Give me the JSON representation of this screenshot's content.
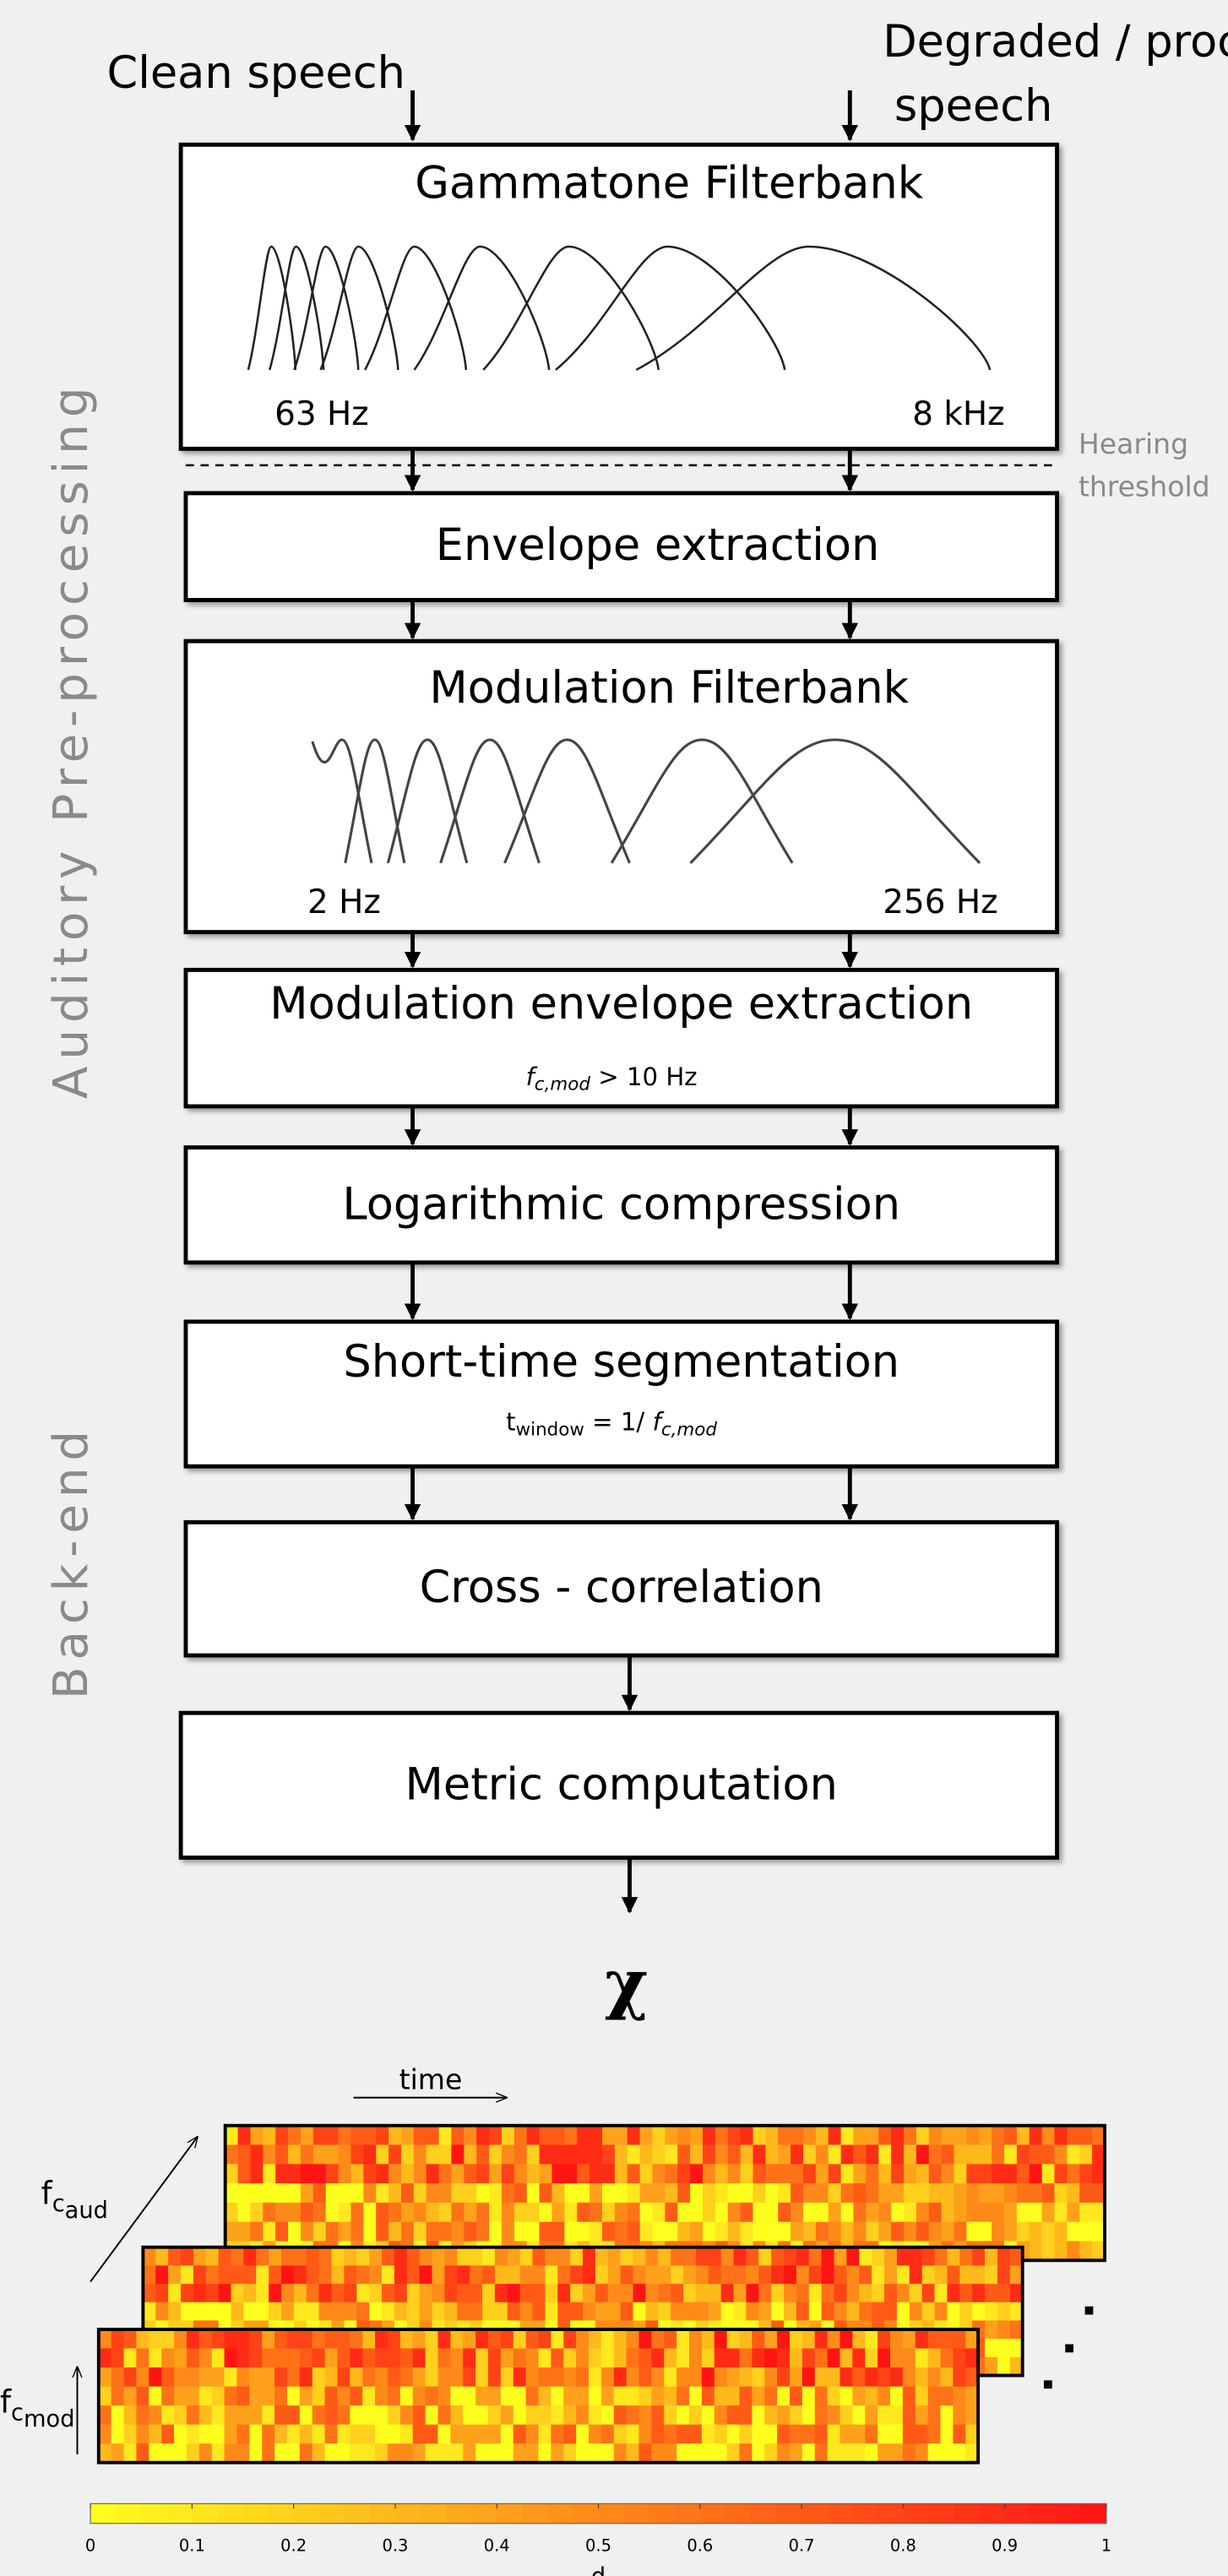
{
  "inputs": {
    "clean": "Clean speech",
    "degraded": [
      "Degraded / proc",
      "speech"
    ]
  },
  "side_labels": {
    "auditory": "Auditory  Pre-processing",
    "backend": "Back-end"
  },
  "threshold": [
    "Hearing",
    "threshold"
  ],
  "blocks": [
    {
      "title": "Gammatone Filterbank",
      "low": "63 Hz",
      "high": "8 kHz"
    },
    {
      "title": "Envelope extraction"
    },
    {
      "title": "Modulation Filterbank",
      "low": "2 Hz",
      "high": "256 Hz"
    },
    {
      "title": "Modulation envelope extraction",
      "note": {
        "f": "f",
        "sub": "c,mod",
        "rest": " > 10 Hz"
      }
    },
    {
      "title": "Logarithmic compression"
    },
    {
      "title": "Short-time segmentation",
      "note": {
        "t": "t",
        "tsub": "window",
        "eq": " = 1/ ",
        "f": "f",
        "sub": "c,mod"
      }
    },
    {
      "title": "Cross - correlation"
    },
    {
      "title": "Metric computation"
    }
  ],
  "output": "χ",
  "illustration": {
    "time": "time",
    "faud": {
      "f": "f",
      "sub": "c",
      "subsub": "aud"
    },
    "fmod": {
      "f": "f",
      "sub": "c",
      "subsub": "mod"
    }
  },
  "colorbar": {
    "lim": [
      0,
      1
    ],
    "ticks": [
      0,
      0.1,
      0.2,
      0.3,
      0.4,
      0.5,
      0.6,
      0.7,
      0.8,
      0.9,
      1
    ],
    "colors": [
      "#ffff1e",
      "#ff1414"
    ],
    "label": "d"
  }
}
